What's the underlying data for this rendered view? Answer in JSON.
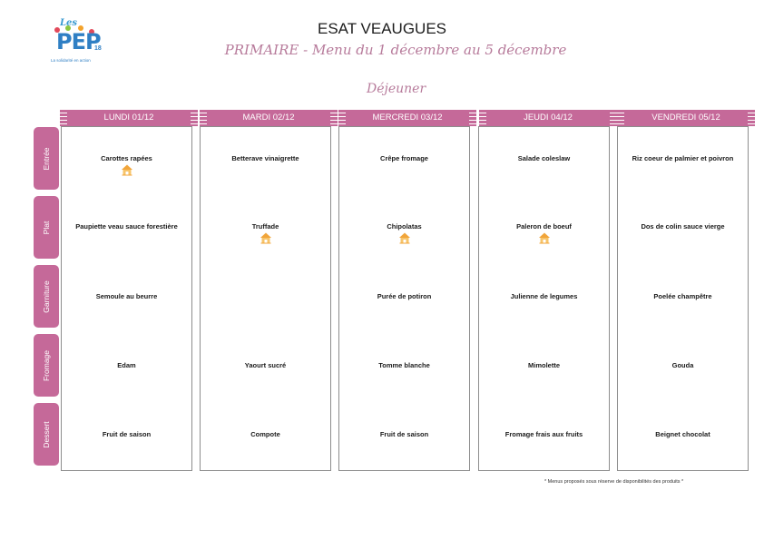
{
  "header": {
    "logo_les": "Les",
    "logo_pep": "PEP",
    "logo_num": "18",
    "logo_tagline": "La solidarité en action",
    "title": "ESAT VEAUGUES",
    "subtitle": "PRIMAIRE - Menu du 1 décembre au 5 décembre",
    "meal": "Déjeuner"
  },
  "categories": [
    "Entrée",
    "Plat",
    "Garniture",
    "Fromage",
    "Dessert"
  ],
  "days": [
    {
      "label": "LUNDI 01/12",
      "items": [
        "Carottes rapées",
        "Paupiette veau sauce forestière",
        "Semoule au beurre",
        "Edam",
        "Fruit de saison"
      ],
      "local": [
        true,
        false,
        false,
        false,
        false
      ]
    },
    {
      "label": "MARDI 02/12",
      "items": [
        "Betterave vinaigrette",
        "Truffade",
        "",
        "Yaourt sucré",
        "Compote"
      ],
      "local": [
        false,
        true,
        false,
        false,
        false
      ]
    },
    {
      "label": "MERCREDI 03/12",
      "items": [
        "Crêpe fromage",
        "Chipolatas",
        "Purée de potiron",
        "Tomme blanche",
        "Fruit de saison"
      ],
      "local": [
        false,
        true,
        false,
        false,
        false
      ]
    },
    {
      "label": "JEUDI 04/12",
      "items": [
        "Salade coleslaw",
        "Paleron de boeuf",
        "Julienne de legumes",
        "Mimolette",
        "Fromage frais aux fruits"
      ],
      "local": [
        false,
        true,
        false,
        false,
        false
      ]
    },
    {
      "label": "VENDREDI 05/12",
      "items": [
        "Riz coeur de palmier et poivron",
        "Dos de colin sauce vierge",
        "Poelée champêtre",
        "Gouda",
        "Beignet chocolat"
      ],
      "local": [
        false,
        false,
        false,
        false,
        false
      ]
    }
  ],
  "footnote": "* Menus proposés sous réserve de disponibilités des produits *",
  "colors": {
    "accent": "#c56999",
    "title_pink": "#b77b9b",
    "house_icon": "#f1a53a"
  },
  "icons": {
    "local_product": "house-icon"
  }
}
